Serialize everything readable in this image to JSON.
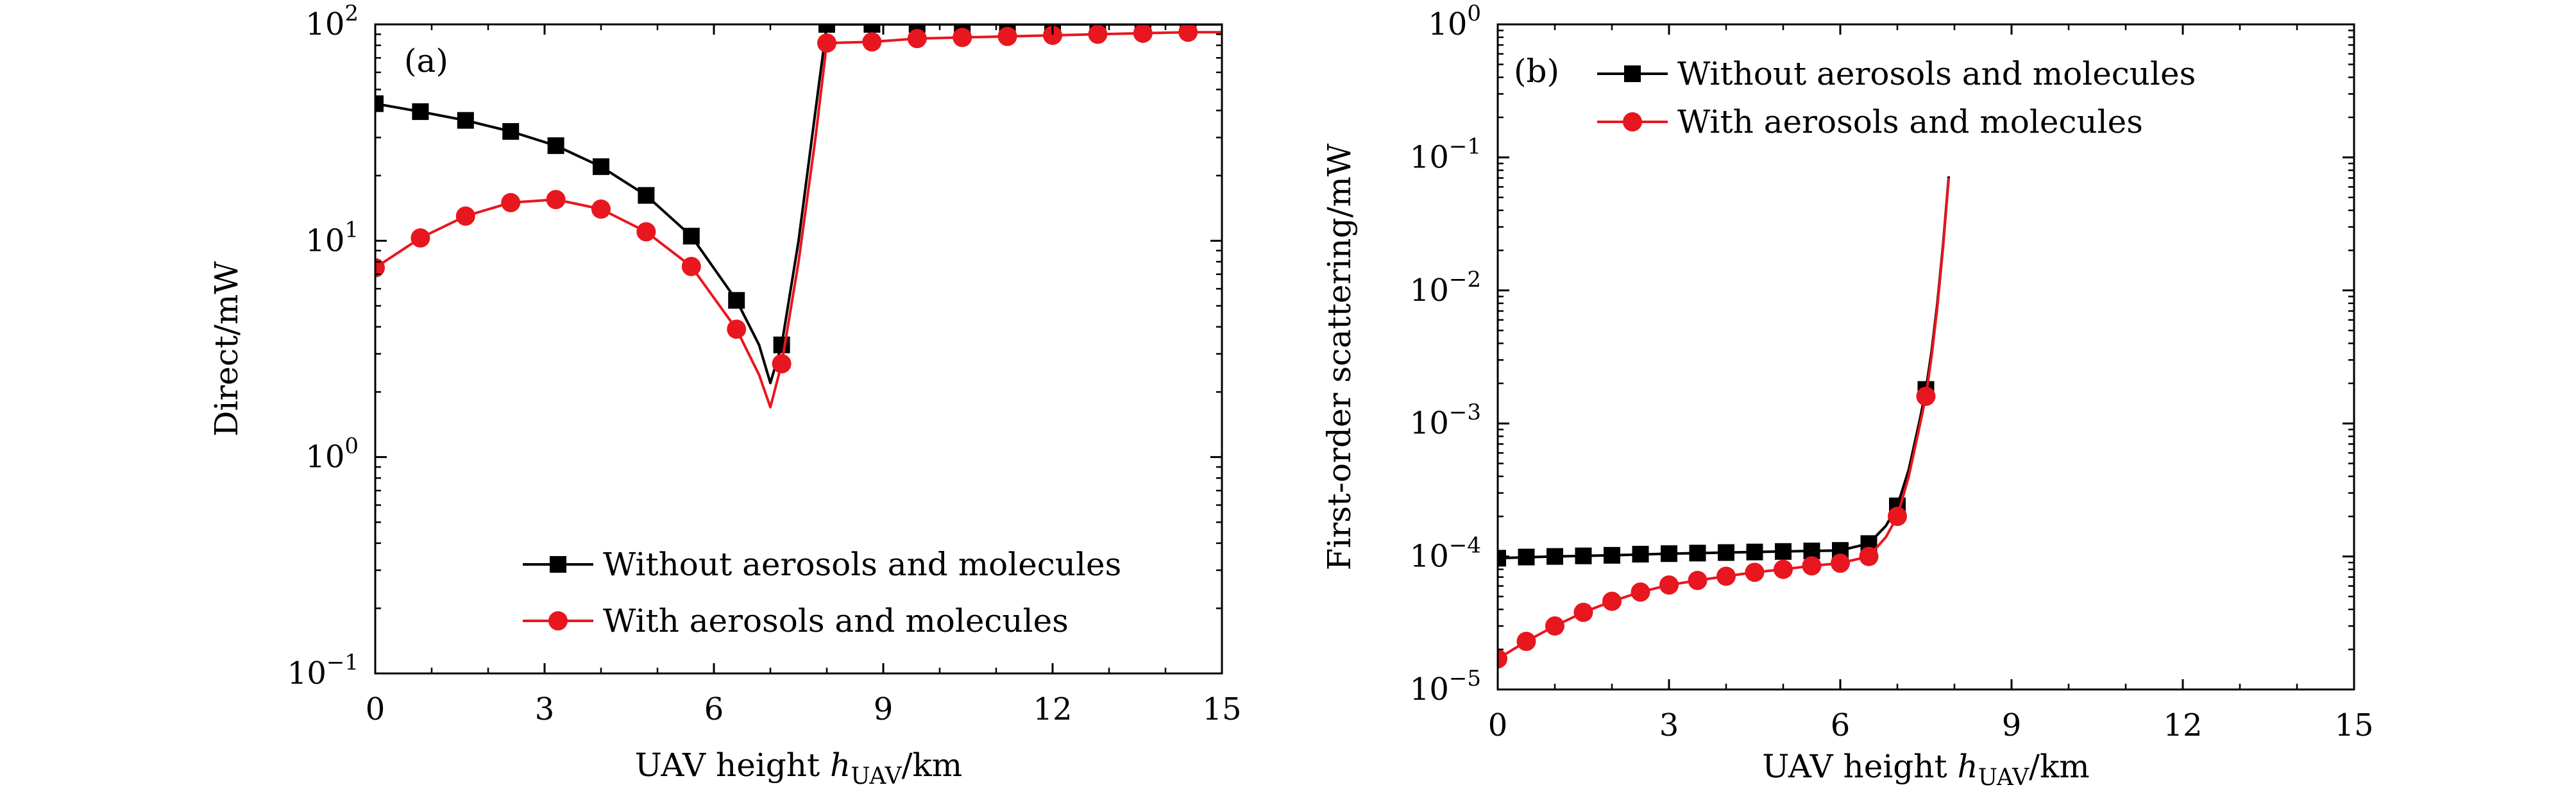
{
  "chart_data": [
    {
      "panel": "(a)",
      "type": "line",
      "xlabel": "UAV height h_UAV/km",
      "xlabel_parts": {
        "before": "UAV height ",
        "italic": "h",
        "sub": "UAV",
        "after": "/km"
      },
      "ylabel": "Direct/mW",
      "xscale": "linear",
      "yscale": "log",
      "xlim": [
        0,
        15
      ],
      "ylim": [
        0.1,
        100
      ],
      "xticks": [
        0,
        3,
        6,
        9,
        12,
        15
      ],
      "yticks": [
        {
          "value": 0.1,
          "base": "10",
          "exp": "−1"
        },
        {
          "value": 1,
          "base": "10",
          "exp": "0"
        },
        {
          "value": 10,
          "base": "10",
          "exp": "1"
        },
        {
          "value": 100,
          "base": "10",
          "exp": "2"
        }
      ],
      "legend_position": "bottom-right",
      "series": [
        {
          "name": "Without aerosols and molecules",
          "color": "#000000",
          "marker": "square",
          "x": [
            0,
            0.8,
            1.6,
            2.4,
            3.2,
            4.0,
            4.8,
            5.6,
            6.4,
            7.2,
            8.0,
            8.8,
            9.6,
            10.4,
            11.2,
            12.0,
            12.8,
            13.6,
            14.4
          ],
          "values": [
            43,
            39.5,
            36,
            32,
            27.5,
            22,
            16.2,
            10.5,
            5.3,
            3.3,
            100,
            100,
            100,
            100,
            100,
            100,
            100,
            100,
            100
          ],
          "curve": [
            [
              0,
              43
            ],
            [
              0.8,
              39.5
            ],
            [
              1.6,
              36
            ],
            [
              2.4,
              32
            ],
            [
              3.2,
              27.5
            ],
            [
              4.0,
              22
            ],
            [
              4.8,
              16.2
            ],
            [
              5.6,
              10.5
            ],
            [
              6.4,
              5.3
            ],
            [
              6.8,
              3.3
            ],
            [
              7.0,
              2.2
            ],
            [
              7.2,
              3.3
            ],
            [
              7.5,
              10
            ],
            [
              7.8,
              40
            ],
            [
              8.0,
              100
            ],
            [
              15,
              100
            ]
          ]
        },
        {
          "name": "With aerosols and molecules",
          "color": "#e8161e",
          "marker": "circle",
          "x": [
            0,
            0.8,
            1.6,
            2.4,
            3.2,
            4.0,
            4.8,
            5.6,
            6.4,
            7.2,
            8.0,
            8.8,
            9.6,
            10.4,
            11.2,
            12.0,
            12.8,
            13.6,
            14.4
          ],
          "values": [
            7.5,
            10.3,
            13,
            15,
            15.5,
            14,
            11,
            7.6,
            3.9,
            2.7,
            82,
            83,
            86,
            87,
            88,
            89,
            90,
            91,
            92
          ],
          "curve": [
            [
              0,
              7.5
            ],
            [
              0.8,
              10.3
            ],
            [
              1.6,
              13
            ],
            [
              2.4,
              15
            ],
            [
              3.2,
              15.5
            ],
            [
              4.0,
              14
            ],
            [
              4.8,
              11
            ],
            [
              5.6,
              7.6
            ],
            [
              6.4,
              3.9
            ],
            [
              6.8,
              2.4
            ],
            [
              7.0,
              1.7
            ],
            [
              7.2,
              2.7
            ],
            [
              7.5,
              8
            ],
            [
              7.8,
              30
            ],
            [
              8.0,
              82
            ],
            [
              8.8,
              83
            ],
            [
              9.6,
              86
            ],
            [
              10.4,
              87
            ],
            [
              11.2,
              88
            ],
            [
              12.0,
              89
            ],
            [
              12.8,
              90
            ],
            [
              13.6,
              91
            ],
            [
              14.4,
              92
            ],
            [
              15,
              92
            ]
          ]
        }
      ]
    },
    {
      "panel": "(b)",
      "type": "line",
      "xlabel": "UAV height h_UAV/km",
      "xlabel_parts": {
        "before": "UAV height ",
        "italic": "h",
        "sub": "UAV",
        "after": "/km"
      },
      "ylabel": "First-order scattering/mW",
      "xscale": "linear",
      "yscale": "log",
      "xlim": [
        0,
        15
      ],
      "ylim": [
        1e-05,
        1
      ],
      "xticks": [
        0,
        3,
        6,
        9,
        12,
        15
      ],
      "yticks": [
        {
          "value": 1e-05,
          "base": "10",
          "exp": "−5"
        },
        {
          "value": 0.0001,
          "base": "10",
          "exp": "−4"
        },
        {
          "value": 0.001,
          "base": "10",
          "exp": "−3"
        },
        {
          "value": 0.01,
          "base": "10",
          "exp": "−2"
        },
        {
          "value": 0.1,
          "base": "10",
          "exp": "−1"
        },
        {
          "value": 1,
          "base": "10",
          "exp": "0"
        }
      ],
      "legend_position": "top-left",
      "series": [
        {
          "name": "Without aerosols and molecules",
          "color": "#000000",
          "marker": "square",
          "x": [
            0,
            0.5,
            1.0,
            1.5,
            2.0,
            2.5,
            3.0,
            3.5,
            4.0,
            4.5,
            5.0,
            5.5,
            6.0,
            6.5,
            7.0,
            7.5
          ],
          "values": [
            9.7e-05,
            9.9e-05,
            0.0001,
            0.000101,
            0.000102,
            0.000104,
            0.000105,
            0.000106,
            0.000107,
            0.000108,
            0.000109,
            0.00011,
            0.000111,
            0.000125,
            0.00024,
            0.0018
          ],
          "curve": [
            [
              0,
              9.7e-05
            ],
            [
              1,
              0.0001
            ],
            [
              2,
              0.000102
            ],
            [
              3,
              0.000105
            ],
            [
              4,
              0.000107
            ],
            [
              5,
              0.000109
            ],
            [
              6,
              0.000111
            ],
            [
              6.5,
              0.000125
            ],
            [
              6.8,
              0.00017
            ],
            [
              7.0,
              0.00024
            ],
            [
              7.2,
              0.00045
            ],
            [
              7.4,
              0.0011
            ],
            [
              7.5,
              0.0018
            ],
            [
              7.6,
              0.0035
            ],
            [
              7.7,
              0.008
            ],
            [
              7.8,
              0.022
            ],
            [
              7.9,
              0.072
            ]
          ]
        },
        {
          "name": "With aerosols and molecules",
          "color": "#e8161e",
          "marker": "circle",
          "x": [
            0,
            0.5,
            1.0,
            1.5,
            2.0,
            2.5,
            3.0,
            3.5,
            4.0,
            4.5,
            5.0,
            5.5,
            6.0,
            6.5,
            7.0,
            7.5
          ],
          "values": [
            1.7e-05,
            2.3e-05,
            3e-05,
            3.8e-05,
            4.6e-05,
            5.4e-05,
            6.1e-05,
            6.6e-05,
            7.1e-05,
            7.6e-05,
            8e-05,
            8.5e-05,
            8.9e-05,
            0.0001,
            0.0002,
            0.0016
          ],
          "curve": [
            [
              0,
              1.7e-05
            ],
            [
              0.5,
              2.3e-05
            ],
            [
              1.0,
              3e-05
            ],
            [
              1.5,
              3.8e-05
            ],
            [
              2.0,
              4.6e-05
            ],
            [
              2.5,
              5.4e-05
            ],
            [
              3.0,
              6.1e-05
            ],
            [
              3.5,
              6.6e-05
            ],
            [
              4.0,
              7.1e-05
            ],
            [
              4.5,
              7.6e-05
            ],
            [
              5.0,
              8e-05
            ],
            [
              5.5,
              8.5e-05
            ],
            [
              6.0,
              8.9e-05
            ],
            [
              6.5,
              0.0001
            ],
            [
              6.8,
              0.00014
            ],
            [
              7.0,
              0.0002
            ],
            [
              7.2,
              0.0004
            ],
            [
              7.4,
              0.001
            ],
            [
              7.5,
              0.0016
            ],
            [
              7.6,
              0.0032
            ],
            [
              7.7,
              0.0075
            ],
            [
              7.8,
              0.021
            ],
            [
              7.9,
              0.07
            ]
          ]
        }
      ]
    }
  ]
}
